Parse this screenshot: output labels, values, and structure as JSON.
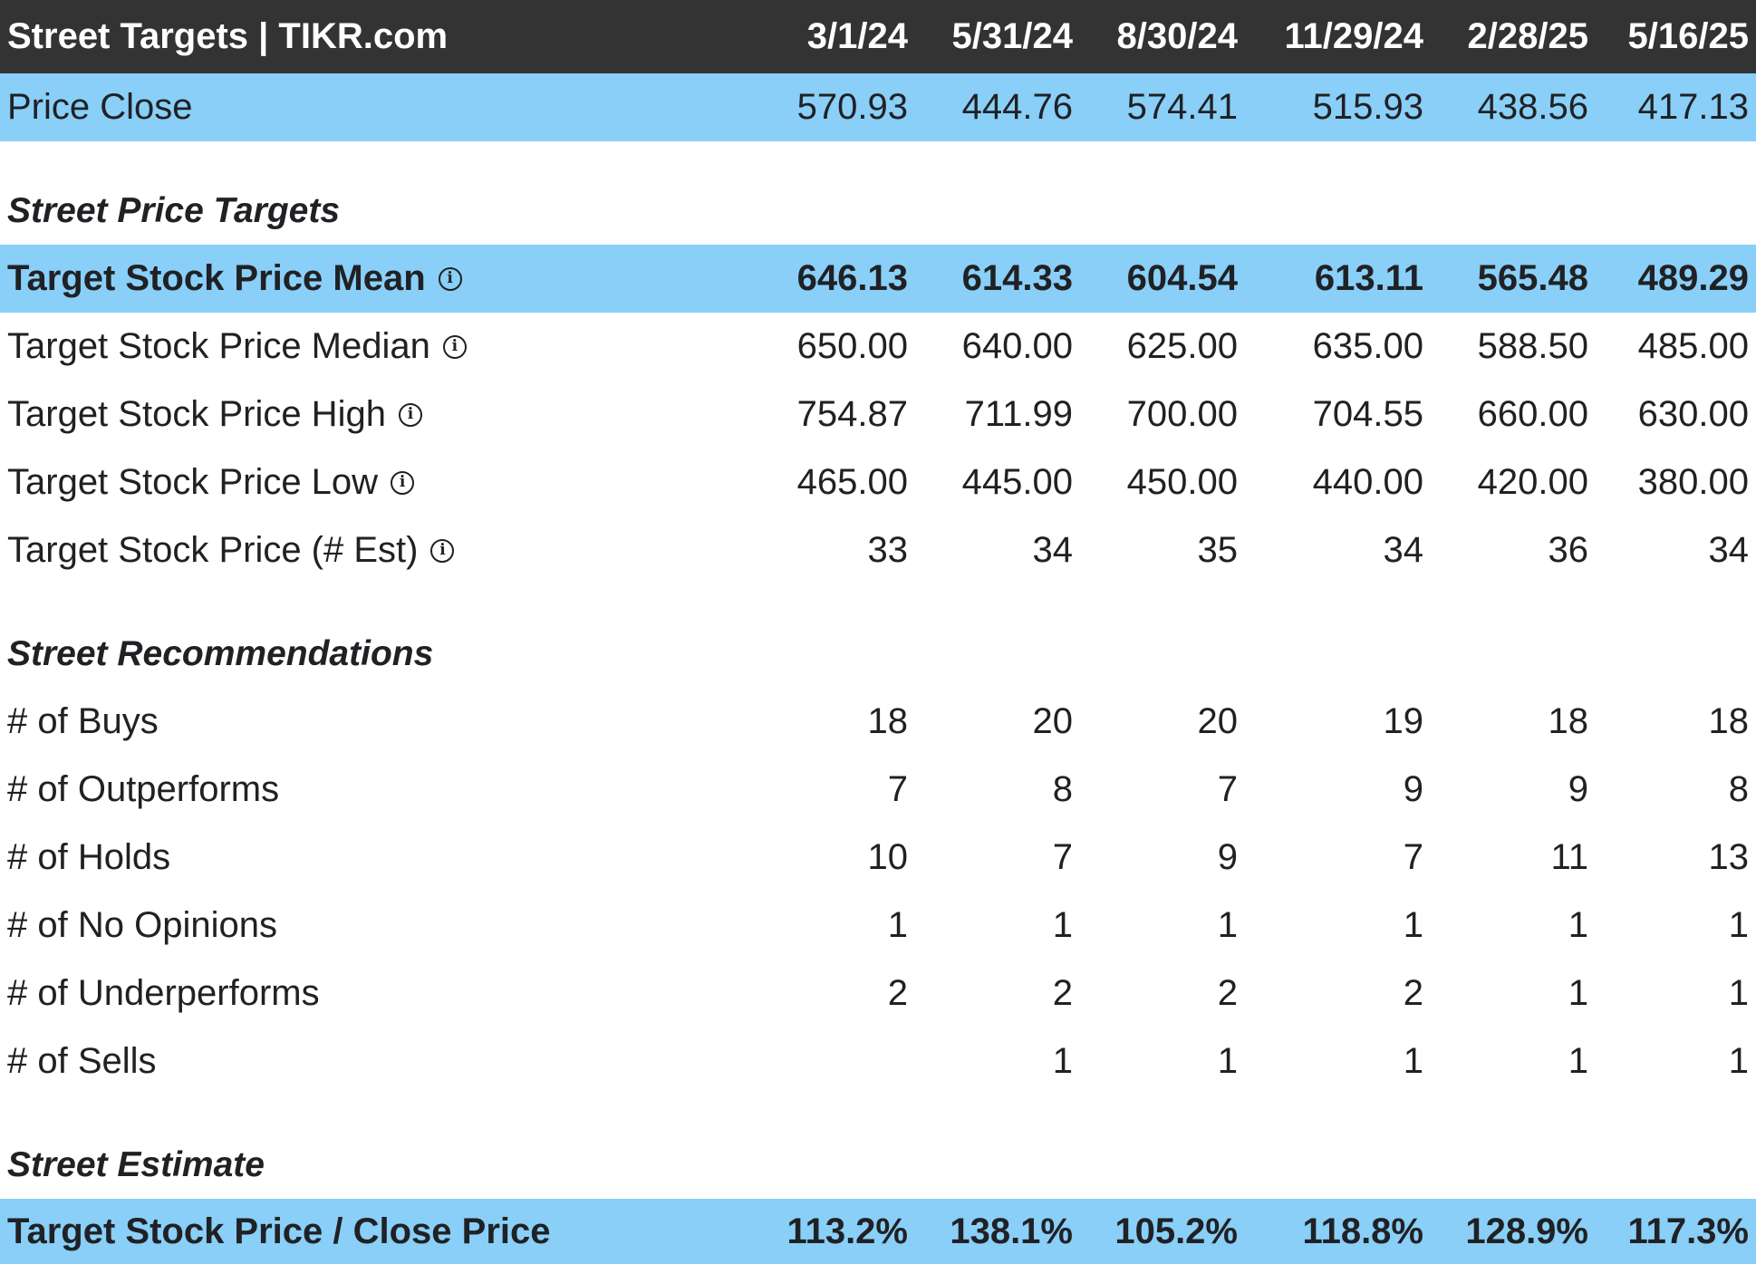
{
  "header": {
    "title": "Street Targets | TIKR.com",
    "dates": [
      "3/1/24",
      "5/31/24",
      "8/30/24",
      "11/29/24",
      "2/28/25",
      "5/16/25"
    ]
  },
  "price_close": {
    "label": "Price Close",
    "values": [
      "570.93",
      "444.76",
      "574.41",
      "515.93",
      "438.56",
      "417.13"
    ]
  },
  "sections": {
    "price_targets": "Street Price Targets",
    "recommendations": "Street Recommendations",
    "estimate": "Street Estimate"
  },
  "target_mean": {
    "label": "Target Stock Price Mean",
    "values": [
      "646.13",
      "614.33",
      "604.54",
      "613.11",
      "565.48",
      "489.29"
    ]
  },
  "target_median": {
    "label": "Target Stock Price Median",
    "values": [
      "650.00",
      "640.00",
      "625.00",
      "635.00",
      "588.50",
      "485.00"
    ]
  },
  "target_high": {
    "label": "Target Stock Price High",
    "values": [
      "754.87",
      "711.99",
      "700.00",
      "704.55",
      "660.00",
      "630.00"
    ]
  },
  "target_low": {
    "label": "Target Stock Price Low",
    "values": [
      "465.00",
      "445.00",
      "450.00",
      "440.00",
      "420.00",
      "380.00"
    ]
  },
  "target_est": {
    "label": "Target Stock Price (# Est)",
    "values": [
      "33",
      "34",
      "35",
      "34",
      "36",
      "34"
    ]
  },
  "buys": {
    "label": "# of Buys",
    "values": [
      "18",
      "20",
      "20",
      "19",
      "18",
      "18"
    ]
  },
  "outperforms": {
    "label": "# of Outperforms",
    "values": [
      "7",
      "8",
      "7",
      "9",
      "9",
      "8"
    ]
  },
  "holds": {
    "label": "# of Holds",
    "values": [
      "10",
      "7",
      "9",
      "7",
      "11",
      "13"
    ]
  },
  "no_opinions": {
    "label": "# of No Opinions",
    "values": [
      "1",
      "1",
      "1",
      "1",
      "1",
      "1"
    ]
  },
  "underperforms": {
    "label": "# of Underperforms",
    "values": [
      "2",
      "2",
      "2",
      "2",
      "1",
      "1"
    ]
  },
  "sells": {
    "label": "# of Sells",
    "values": [
      "",
      "1",
      "1",
      "1",
      "1",
      "1"
    ]
  },
  "ratio": {
    "label": "Target Stock Price / Close Price",
    "values": [
      "113.2%",
      "138.1%",
      "105.2%",
      "118.8%",
      "128.9%",
      "117.3%"
    ]
  },
  "info_icon_glyph": "i",
  "colors": {
    "header_bg": "#333333",
    "highlight_bg": "#89cff8"
  }
}
